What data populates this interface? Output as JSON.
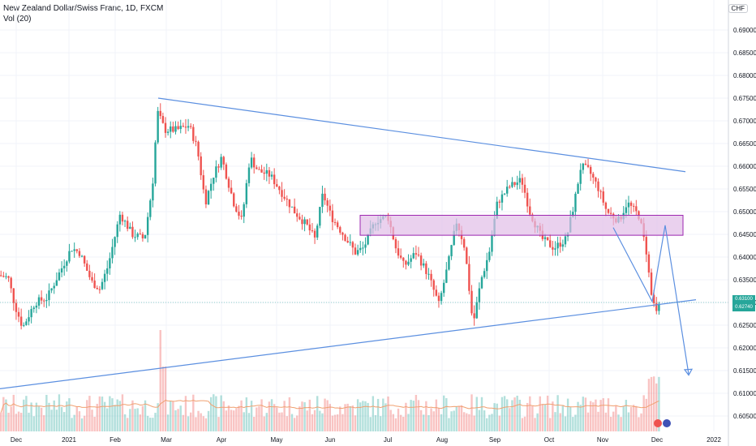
{
  "header": {
    "symbol_line": "New Zealand Dollar/Swiss Franc, 1D, FXCM",
    "indicator_line": "Vol (20)"
  },
  "currency_badge": "CHF",
  "price_axis_labels": [
    "0.69000",
    "0.68500",
    "0.68000",
    "0.67500",
    "0.67000",
    "0.66500",
    "0.66000",
    "0.65500",
    "0.65000",
    "0.64500",
    "0.64000",
    "0.63500",
    "0.63000",
    "0.62500",
    "0.62000",
    "0.61500",
    "0.61000",
    "0.60500"
  ],
  "price_axis_values": [
    0.69,
    0.685,
    0.68,
    0.675,
    0.67,
    0.665,
    0.66,
    0.655,
    0.65,
    0.645,
    0.64,
    0.635,
    0.63,
    0.625,
    0.62,
    0.615,
    0.61,
    0.605
  ],
  "time_axis_labels": [
    "Dec",
    "2021",
    "Feb",
    "Mar",
    "Apr",
    "May",
    "Jun",
    "Jul",
    "Aug",
    "Sep",
    "Oct",
    "Nov",
    "Dec",
    "2022"
  ],
  "current_price_tag": [
    "0.63100",
    "0.62740"
  ],
  "colors": {
    "up": "#26a69a",
    "down": "#ef5350",
    "trendline": "#5b8fe0",
    "zone_fill": "#e1bee7",
    "zone_border": "#9c27b0",
    "grid": "#f0f3fa",
    "vol_ma": "#f0a070"
  },
  "chart_data": {
    "type": "candlestick",
    "title": "New Zealand Dollar/Swiss Franc, 1D, FXCM",
    "y_range": [
      0.602,
      0.6975
    ],
    "annotations": {
      "upper_trendline": [
        [
          "2021-02-27",
          0.675
        ],
        [
          "2021-12-15",
          0.6588
        ]
      ],
      "lower_trendline": [
        [
          "2020-11-20",
          0.611
        ],
        [
          "2021-12-15",
          0.6306
        ]
      ],
      "resistance_zone": [
        0.6448,
        0.6492
      ],
      "arrow_path": [
        [
          "2021-11-08",
          0.6465
        ],
        [
          "2021-11-23",
          0.6302
        ],
        [
          "2021-12-02",
          0.647
        ],
        [
          "2021-12-12",
          0.614
        ]
      ]
    },
    "closes_approx": [
      0.636,
      0.637,
      0.632,
      0.628,
      0.625,
      0.63,
      0.634,
      0.64,
      0.642,
      0.638,
      0.634,
      0.633,
      0.647,
      0.65,
      0.647,
      0.642,
      0.675,
      0.67,
      0.665,
      0.668,
      0.666,
      0.662,
      0.656,
      0.651,
      0.66,
      0.661,
      0.656,
      0.648,
      0.657,
      0.657,
      0.653,
      0.652,
      0.645,
      0.649,
      0.65,
      0.644,
      0.64,
      0.646,
      0.648,
      0.644,
      0.641,
      0.644,
      0.637,
      0.638,
      0.63,
      0.632,
      0.627,
      0.638,
      0.646,
      0.655,
      0.654,
      0.65,
      0.644,
      0.641,
      0.645,
      0.66,
      0.655,
      0.651,
      0.647,
      0.648,
      0.64,
      0.634,
      0.628,
      0.627,
      0.63
    ]
  }
}
